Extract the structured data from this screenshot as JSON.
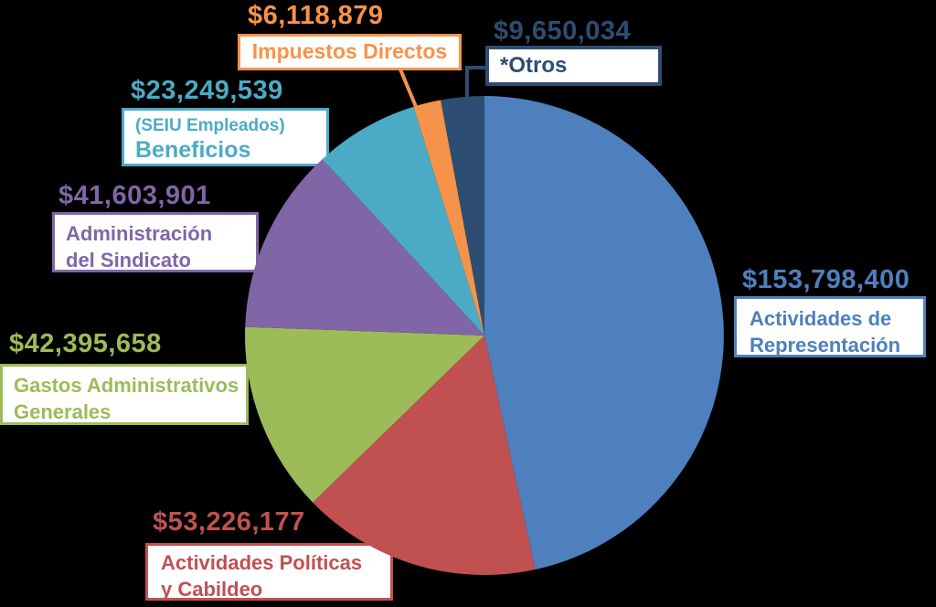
{
  "background": "#000000",
  "chart_data": {
    "type": "pie",
    "title": "",
    "legend": "none",
    "start_angle_deg": 0,
    "direction": "clockwise",
    "total_value": 330042588,
    "slices": [
      {
        "label": "Actividades de Representación",
        "label_lines": [
          "Actividades de",
          "Representación"
        ],
        "amount": "$153,798,400",
        "value": 153798400,
        "color": "#4e80bd"
      },
      {
        "label": "Actividades Políticas y Cabildeo",
        "label_lines": [
          "Actividades Políticas",
          "y Cabildeo"
        ],
        "amount": "$53,226,177",
        "value": 53226177,
        "color": "#c05150"
      },
      {
        "label": "Gastos Administrativos Generales",
        "label_lines": [
          "Gastos Administrativos",
          "Generales"
        ],
        "amount": "$42,395,658",
        "value": 42395658,
        "color": "#9dbb58"
      },
      {
        "label": "Administración del Sindicato",
        "label_lines": [
          "Administración",
          "del Sindicato"
        ],
        "amount": "$41,603,901",
        "value": 41603901,
        "color": "#8066a6"
      },
      {
        "label": "(SEIU Empleados) Beneficios",
        "label_lines": [
          "(SEIU Empleados)",
          "Beneficios"
        ],
        "amount": "$23,249,539",
        "value": 23249539,
        "color": "#4babc6"
      },
      {
        "label": "Impuestos Directos",
        "label_lines": [
          "Impuestos Directos"
        ],
        "amount": "$6,118,879",
        "value": 6118879,
        "color": "#f6934b"
      },
      {
        "label": "*Otros",
        "label_lines": [
          "*Otros"
        ],
        "amount": "$9,650,034",
        "value": 9650034,
        "color": "#2d4d72"
      }
    ]
  }
}
